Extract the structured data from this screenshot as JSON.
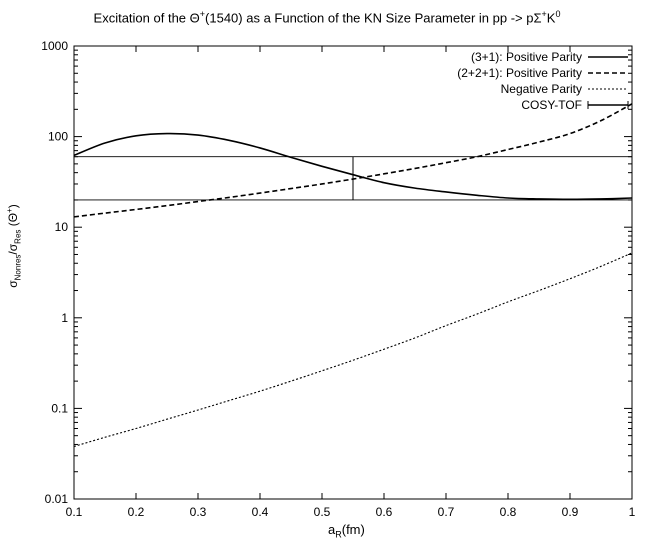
{
  "chart_data": {
    "type": "line",
    "title": {
      "prefix": "Excitation of the Θ",
      "sup1": "+",
      "mid": "(1540) as a Function of  the KN Size Parameter in pp -> pΣ",
      "sup2": "+",
      "k": "K",
      "sup3": "0"
    },
    "xlabel": {
      "main": "a",
      "sub": "R",
      "tail": "(fm)"
    },
    "ylabel": {
      "s1": "σ",
      "sub1": "Nonres",
      "slash": "/σ",
      "sub2": "Res",
      "paren": " (Θ",
      "sup": "+",
      "close": ")"
    },
    "xlim": [
      0.1,
      1.0
    ],
    "ylim": [
      0.01,
      1000
    ],
    "yscale": "log",
    "x_ticks": [
      "0.1",
      "0.2",
      "0.3",
      "0.4",
      "0.5",
      "0.6",
      "0.7",
      "0.8",
      "0.9",
      "1"
    ],
    "y_ticks": [
      "0.01",
      "0.1",
      "1",
      "10",
      "100",
      "1000"
    ],
    "legend_position": "top-right",
    "series": [
      {
        "name": "(3+1): Positive Parity",
        "style": "solid",
        "x": [
          0.1,
          0.15,
          0.2,
          0.25,
          0.3,
          0.35,
          0.4,
          0.45,
          0.5,
          0.55,
          0.6,
          0.65,
          0.7,
          0.75,
          0.8,
          0.85,
          0.9,
          0.95,
          1.0
        ],
        "y": [
          62,
          85,
          102,
          108,
          104,
          91,
          75,
          59,
          47,
          38,
          31,
          27,
          24.5,
          22.5,
          21,
          20.5,
          20.3,
          20.5,
          21
        ]
      },
      {
        "name": "(2+2+1): Positive Parity",
        "style": "dashed",
        "x": [
          0.1,
          0.15,
          0.2,
          0.25,
          0.3,
          0.35,
          0.4,
          0.45,
          0.5,
          0.55,
          0.6,
          0.65,
          0.7,
          0.75,
          0.8,
          0.85,
          0.9,
          0.95,
          1.0
        ],
        "y": [
          13,
          14.3,
          15.7,
          17.3,
          19.2,
          21.3,
          23.8,
          26.7,
          30,
          34,
          38.8,
          44.5,
          51.5,
          60,
          72,
          87,
          108,
          150,
          230
        ]
      },
      {
        "name": "Negative Parity",
        "style": "dotted",
        "x": [
          0.1,
          0.15,
          0.2,
          0.25,
          0.3,
          0.35,
          0.4,
          0.45,
          0.5,
          0.55,
          0.6,
          0.65,
          0.7,
          0.75,
          0.8,
          0.85,
          0.9,
          0.95,
          1.0
        ],
        "y": [
          0.038,
          0.048,
          0.06,
          0.076,
          0.096,
          0.122,
          0.155,
          0.2,
          0.26,
          0.34,
          0.45,
          0.6,
          0.82,
          1.1,
          1.5,
          2.0,
          2.7,
          3.7,
          5.2
        ]
      },
      {
        "name": "COSY-TOF",
        "style": "errorband",
        "x": 0.55,
        "y_low": 20,
        "y_high": 60
      }
    ]
  }
}
